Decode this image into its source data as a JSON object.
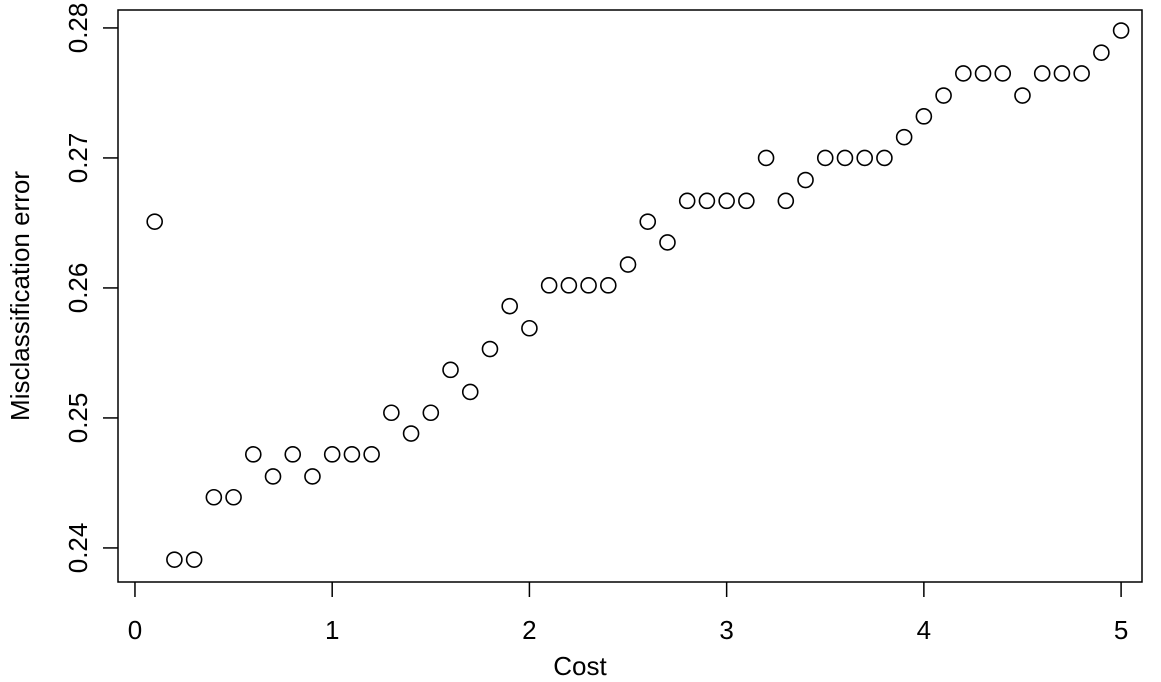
{
  "chart_data": {
    "type": "scatter",
    "x_label": "Cost",
    "y_label": "Misclassification error",
    "x": [
      0.1,
      0.2,
      0.3,
      0.4,
      0.5,
      0.6,
      0.7,
      0.8,
      0.9,
      1.0,
      1.1,
      1.2,
      1.3,
      1.4,
      1.5,
      1.6,
      1.7,
      1.8,
      1.9,
      2.0,
      2.1,
      2.2,
      2.3,
      2.4,
      2.5,
      2.6,
      2.7,
      2.8,
      2.9,
      3.0,
      3.1,
      3.2,
      3.3,
      3.4,
      3.5,
      3.6,
      3.7,
      3.8,
      3.9,
      4.0,
      4.1,
      4.2,
      4.3,
      4.4,
      4.5,
      4.6,
      4.7,
      4.8,
      4.9,
      5.0
    ],
    "values": [
      0.2651,
      0.2391,
      0.2391,
      0.2439,
      0.2439,
      0.2472,
      0.2455,
      0.2472,
      0.2455,
      0.2472,
      0.2472,
      0.2472,
      0.2504,
      0.2488,
      0.2504,
      0.2537,
      0.252,
      0.2553,
      0.2586,
      0.2569,
      0.2602,
      0.2602,
      0.2602,
      0.2602,
      0.2618,
      0.2651,
      0.2635,
      0.2667,
      0.2667,
      0.2667,
      0.2667,
      0.27,
      0.2667,
      0.2683,
      0.27,
      0.27,
      0.27,
      0.27,
      0.2716,
      0.2732,
      0.2748,
      0.2765,
      0.2765,
      0.2765,
      0.2748,
      0.2765,
      0.2765,
      0.2765,
      0.2781,
      0.2798
    ],
    "color": "#000000",
    "xlim": [
      -0.086,
      5.106
    ],
    "xticks": [
      0,
      1,
      2,
      3,
      4,
      5
    ],
    "ylim": [
      0.23738,
      0.28138
    ],
    "yticks": [
      0.24,
      0.25,
      0.26,
      0.27,
      0.28
    ]
  }
}
